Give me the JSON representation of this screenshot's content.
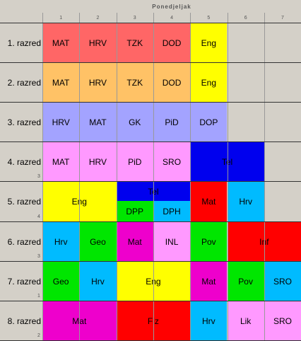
{
  "day": "Ponedjeljak",
  "periods": [
    "1",
    "2",
    "3",
    "4",
    "5",
    "6",
    "7"
  ],
  "rows": [
    {
      "label": "1. razred",
      "num": "",
      "cells": [
        {
          "text": "MAT",
          "c": 0,
          "span": 1,
          "color": "#ff6666"
        },
        {
          "text": "HRV",
          "c": 1,
          "span": 1,
          "color": "#ff6666"
        },
        {
          "text": "TZK",
          "c": 2,
          "span": 1,
          "color": "#ff6666"
        },
        {
          "text": "DOD",
          "c": 3,
          "span": 1,
          "color": "#ff6666"
        },
        {
          "text": "Eng",
          "c": 4,
          "span": 1,
          "color": "#ffff00"
        }
      ]
    },
    {
      "label": "2. razred",
      "num": "",
      "cells": [
        {
          "text": "MAT",
          "c": 0,
          "span": 1,
          "color": "#ffc266"
        },
        {
          "text": "HRV",
          "c": 1,
          "span": 1,
          "color": "#ffc266"
        },
        {
          "text": "TZK",
          "c": 2,
          "span": 1,
          "color": "#ffc266"
        },
        {
          "text": "DOD",
          "c": 3,
          "span": 1,
          "color": "#ffc266"
        },
        {
          "text": "Eng",
          "c": 4,
          "span": 1,
          "color": "#ffff00"
        }
      ]
    },
    {
      "label": "3. razred",
      "num": "",
      "cells": [
        {
          "text": "HRV",
          "c": 0,
          "span": 1,
          "color": "#a3a3ff"
        },
        {
          "text": "MAT",
          "c": 1,
          "span": 1,
          "color": "#a3a3ff"
        },
        {
          "text": "GK",
          "c": 2,
          "span": 1,
          "color": "#a3a3ff"
        },
        {
          "text": "PiD",
          "c": 3,
          "span": 1,
          "color": "#a3a3ff"
        },
        {
          "text": "DOP",
          "c": 4,
          "span": 1,
          "color": "#a3a3ff"
        }
      ]
    },
    {
      "label": "4. razred",
      "num": "3",
      "cells": [
        {
          "text": "MAT",
          "c": 0,
          "span": 1,
          "color": "#ff99ff"
        },
        {
          "text": "HRV",
          "c": 1,
          "span": 1,
          "color": "#ff99ff"
        },
        {
          "text": "PiD",
          "c": 2,
          "span": 1,
          "color": "#ff99ff"
        },
        {
          "text": "SRO",
          "c": 3,
          "span": 1,
          "color": "#ff99ff"
        },
        {
          "text": "Tel",
          "c": 4,
          "span": 2,
          "color": "#0000ee"
        }
      ]
    },
    {
      "label": "5. razred",
      "num": "4",
      "cells": [
        {
          "text": "Eng",
          "c": 0,
          "span": 2,
          "color": "#ffff00"
        },
        {
          "text": "Tel",
          "c": 2,
          "span": 2,
          "color": "#0000ee",
          "half": "top"
        },
        {
          "text": "DPP",
          "c": 2,
          "span": 1,
          "color": "#00e600",
          "half": "bottom"
        },
        {
          "text": "DPH",
          "c": 3,
          "span": 1,
          "color": "#00bbff",
          "half": "bottom"
        },
        {
          "text": "Mat",
          "c": 4,
          "span": 1,
          "color": "#ff0000"
        },
        {
          "text": "Hrv",
          "c": 5,
          "span": 1,
          "color": "#00bbff"
        }
      ]
    },
    {
      "label": "6. razred",
      "num": "3",
      "cells": [
        {
          "text": "Hrv",
          "c": 0,
          "span": 1,
          "color": "#00bbff"
        },
        {
          "text": "Geo",
          "c": 1,
          "span": 1,
          "color": "#00e600"
        },
        {
          "text": "Mat",
          "c": 2,
          "span": 1,
          "color": "#ee00cc"
        },
        {
          "text": "INL",
          "c": 3,
          "span": 1,
          "color": "#ff99ff"
        },
        {
          "text": "Pov",
          "c": 4,
          "span": 1,
          "color": "#00e600"
        },
        {
          "text": "Inf",
          "c": 5,
          "span": 2,
          "color": "#ff0000"
        }
      ]
    },
    {
      "label": "7. razred",
      "num": "1",
      "cells": [
        {
          "text": "Geo",
          "c": 0,
          "span": 1,
          "color": "#00e600"
        },
        {
          "text": "Hrv",
          "c": 1,
          "span": 1,
          "color": "#00bbff"
        },
        {
          "text": "Eng",
          "c": 2,
          "span": 2,
          "color": "#ffff00"
        },
        {
          "text": "Mat",
          "c": 4,
          "span": 1,
          "color": "#ee00cc"
        },
        {
          "text": "Pov",
          "c": 5,
          "span": 1,
          "color": "#00e600"
        },
        {
          "text": "SRO",
          "c": 6,
          "span": 1,
          "color": "#00bbff"
        }
      ]
    },
    {
      "label": "8. razred",
      "num": "2",
      "cells": [
        {
          "text": "Mat",
          "c": 0,
          "span": 2,
          "color": "#ee00cc"
        },
        {
          "text": "Fiz",
          "c": 2,
          "span": 2,
          "color": "#ff0000"
        },
        {
          "text": "Hrv",
          "c": 4,
          "span": 1,
          "color": "#00bbff"
        },
        {
          "text": "Lik",
          "c": 5,
          "span": 1,
          "color": "#ff99ff"
        },
        {
          "text": "SRO",
          "c": 6,
          "span": 1,
          "color": "#ff99ff"
        }
      ]
    }
  ]
}
